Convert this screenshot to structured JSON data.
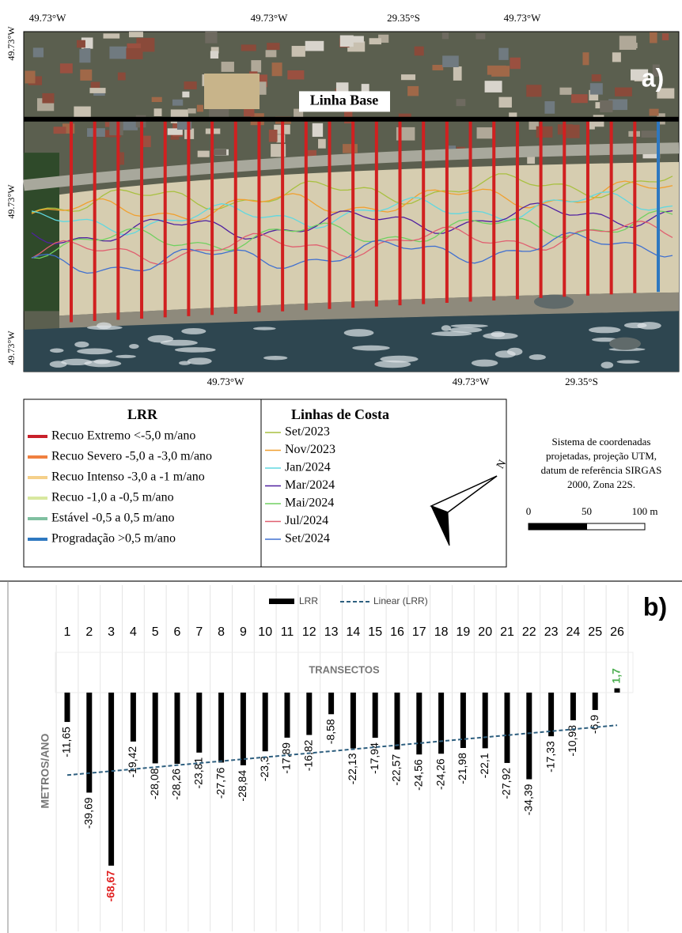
{
  "map": {
    "panel_label": "a)",
    "baseline_label": "Linha Base",
    "top_coords": [
      "49.73°W",
      "49.73°W",
      "29.35°S",
      "49.73°W"
    ],
    "bottom_coords": [
      "49.73°W",
      "49.73°W",
      "29.35°S"
    ],
    "left_coords": [
      "49.73°W",
      "49.73°W",
      "49.73°W"
    ]
  },
  "legend": {
    "lrr_title": "LRR",
    "lrr_items": [
      {
        "label": "Recuo Extremo <-5,0 m/ano",
        "color": "#c8202a"
      },
      {
        "label": "Recuo Severo -5,0 a -3,0 m/ano",
        "color": "#f08040"
      },
      {
        "label": "Recuo Intenso -3,0 a -1 m/ano",
        "color": "#f5d08a"
      },
      {
        "label": "Recuo -1,0 a -0,5 m/ano",
        "color": "#d8e8a0"
      },
      {
        "label": "Estável -0,5 a 0,5 m/ano",
        "color": "#80c0a0"
      },
      {
        "label": "Progradação >0,5 m/ano",
        "color": "#2e78c0"
      }
    ],
    "coast_title": "Linhas de Costa",
    "coast_items": [
      {
        "label": "Set/2023",
        "color": "#a8c040"
      },
      {
        "label": "Nov/2023",
        "color": "#f0a030"
      },
      {
        "label": "Jan/2024",
        "color": "#60d8e0"
      },
      {
        "label": "Mar/2024",
        "color": "#5020a0"
      },
      {
        "label": "Mai/2024",
        "color": "#70d060"
      },
      {
        "label": "Jul/2024",
        "color": "#e06070"
      },
      {
        "label": "Set/2024",
        "color": "#4070d0"
      }
    ]
  },
  "note": [
    "Sistema de coordenadas",
    "projetadas, projeção UTM,",
    "datum de referência SIRGAS",
    "2000, Zona 22S."
  ],
  "north": "N",
  "scale_ticks": [
    0,
    50,
    {
      "value": 100,
      "label": "100 m"
    }
  ],
  "chart_data": {
    "type": "bar",
    "panel_label": "b)",
    "x_label": "TRANSECTOS",
    "y_label": "METROS/ANO",
    "categories": [
      "1",
      "2",
      "3",
      "4",
      "5",
      "6",
      "7",
      "8",
      "9",
      "10",
      "11",
      "12",
      "13",
      "14",
      "15",
      "16",
      "17",
      "18",
      "19",
      "20",
      "21",
      "22",
      "23",
      "24",
      "25",
      "26"
    ],
    "series": [
      {
        "name": "LRR",
        "color": "#000000",
        "values": [
          -11.65,
          -39.69,
          -68.67,
          -19.42,
          -28.08,
          -28.26,
          -23.81,
          -27.76,
          -28.84,
          -23.3,
          -17.89,
          -16.82,
          -8.58,
          -22.13,
          -17.94,
          -22.57,
          -24.56,
          -24.26,
          -21.98,
          -22.1,
          -27.92,
          -34.39,
          -17.33,
          -10.98,
          -6.9,
          1.7
        ],
        "value_labels": [
          "-11,65",
          "-39,69",
          "-68,67",
          "-19,42",
          "-28,08",
          "-28,26",
          "-23,81",
          "-27,76",
          "-28,84",
          "-23,3",
          "-17,89",
          "-16,82",
          "-8,58",
          "-22,13",
          "-17,94",
          "-22,57",
          "-24,56",
          "-24,26",
          "-21,98",
          "-22,1",
          "-27,92",
          "-34,39",
          "-17,33",
          "-10,98",
          "-6,9",
          "1,7"
        ],
        "value_label_colors": [
          "#000000",
          "#000000",
          "#e02020",
          "#000000",
          "#000000",
          "#000000",
          "#000000",
          "#000000",
          "#000000",
          "#000000",
          "#000000",
          "#000000",
          "#000000",
          "#000000",
          "#000000",
          "#000000",
          "#000000",
          "#000000",
          "#000000",
          "#000000",
          "#000000",
          "#000000",
          "#000000",
          "#000000",
          "#000000",
          "#4caf50"
        ]
      }
    ],
    "trendline": {
      "name": "Linear (LRR)",
      "color": "#2e5f7f",
      "style": "dashed"
    },
    "ylim": [
      -75,
      5
    ]
  }
}
